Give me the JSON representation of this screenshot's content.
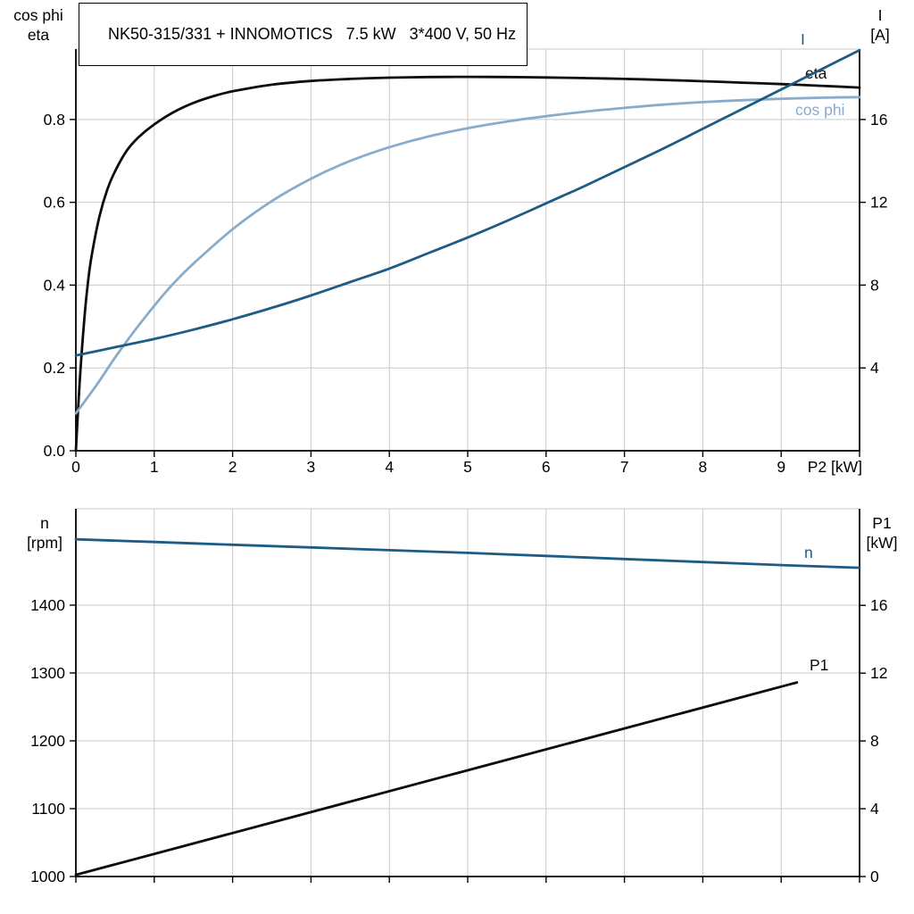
{
  "title": "NK50-315/331 + INNOMOTICS   7.5 kW   3*400 V, 50 Hz",
  "colors": {
    "curve_black": "#0d0d0d",
    "curve_dark_blue": "#1c5c85",
    "curve_light_blue": "#8aaccb",
    "grid": "#c9c9c9",
    "axis": "#000000",
    "text": "#000000"
  },
  "chart_data": [
    {
      "type": "line",
      "title": "NK50-315/331 + INNOMOTICS 7.5 kW 3*400 V, 50 Hz",
      "x_axis": {
        "label": "P2 [kW]",
        "min": 0,
        "max": 10,
        "ticks": [
          0,
          1,
          2,
          3,
          4,
          5,
          6,
          7,
          8,
          9,
          10
        ],
        "tick_labels": [
          "0",
          "1",
          "2",
          "3",
          "4",
          "5",
          "6",
          "7",
          "8",
          "9",
          ""
        ],
        "grid": true
      },
      "y_left": {
        "label_lines": [
          "cos phi",
          "eta"
        ],
        "min": 0,
        "max": 0.97,
        "ticks": [
          0,
          0.2,
          0.4,
          0.6,
          0.8
        ],
        "tick_labels": [
          "0.0",
          "0.2",
          "0.4",
          "0.6",
          "0.8"
        ],
        "grid": true
      },
      "y_right": {
        "label_lines": [
          "I",
          "[A]"
        ],
        "min": 0,
        "max": 19.4,
        "ticks": [
          4,
          8,
          12,
          16
        ],
        "tick_labels": [
          "4",
          "8",
          "12",
          "16"
        ]
      },
      "series": [
        {
          "name": "eta",
          "axis": "left",
          "color_key": "curve_black",
          "label_pos": [
            902,
            88
          ],
          "x": [
            0,
            0.05,
            0.1,
            0.15,
            0.2,
            0.3,
            0.4,
            0.5,
            0.65,
            0.8,
            1,
            1.25,
            1.5,
            1.75,
            2,
            2.5,
            3,
            3.5,
            4,
            4.5,
            5,
            5.5,
            6,
            6.5,
            7,
            7.5,
            8,
            8.5,
            9,
            9.5,
            10
          ],
          "y": [
            0,
            0.17,
            0.3,
            0.4,
            0.47,
            0.565,
            0.63,
            0.675,
            0.725,
            0.757,
            0.788,
            0.818,
            0.84,
            0.856,
            0.868,
            0.884,
            0.893,
            0.898,
            0.901,
            0.9025,
            0.903,
            0.9025,
            0.9015,
            0.9,
            0.898,
            0.8955,
            0.8925,
            0.889,
            0.8855,
            0.8815,
            0.877
          ]
        },
        {
          "name": "cos phi",
          "axis": "left",
          "color_key": "curve_light_blue",
          "label_pos": [
            891,
            129
          ],
          "x": [
            0,
            0.25,
            0.5,
            0.75,
            1,
            1.25,
            1.5,
            2,
            2.5,
            3,
            3.5,
            4,
            4.5,
            5,
            5.5,
            6,
            6.5,
            7,
            7.5,
            8,
            8.5,
            9,
            9.5,
            10
          ],
          "y": [
            0.09,
            0.155,
            0.225,
            0.29,
            0.35,
            0.405,
            0.452,
            0.535,
            0.603,
            0.657,
            0.7,
            0.733,
            0.759,
            0.779,
            0.795,
            0.808,
            0.819,
            0.828,
            0.836,
            0.842,
            0.8465,
            0.85,
            0.8525,
            0.854
          ]
        },
        {
          "name": "I",
          "axis": "right",
          "color_key": "curve_dark_blue",
          "label_pos": [
            897,
            50
          ],
          "x": [
            0,
            0.5,
            1,
            1.5,
            2,
            2.5,
            3,
            3.5,
            4,
            4.5,
            5,
            5.5,
            6,
            6.5,
            7,
            7.5,
            8,
            8.5,
            9,
            9.5,
            10
          ],
          "y": [
            4.6,
            5.0,
            5.4,
            5.85,
            6.35,
            6.9,
            7.5,
            8.15,
            8.8,
            9.55,
            10.3,
            11.1,
            11.95,
            12.8,
            13.7,
            14.6,
            15.55,
            16.5,
            17.45,
            18.4,
            19.35
          ]
        }
      ]
    },
    {
      "type": "line",
      "title": "",
      "x_axis": {
        "label": "",
        "min": 0,
        "max": 10,
        "ticks": [
          0,
          1,
          2,
          3,
          4,
          5,
          6,
          7,
          8,
          9,
          10
        ],
        "tick_labels": [
          "",
          "",
          "",
          "",
          "",
          "",
          "",
          "",
          "",
          "",
          ""
        ],
        "grid": true
      },
      "y_left": {
        "label_lines": [
          "n",
          "[rpm]"
        ],
        "min": 1000,
        "max": 1542,
        "ticks": [
          1000,
          1100,
          1200,
          1300,
          1400
        ],
        "tick_labels": [
          "1000",
          "1100",
          "1200",
          "1300",
          "1400"
        ],
        "grid": true
      },
      "y_right": {
        "label_lines": [
          "P1",
          "[kW]"
        ],
        "min": 0,
        "max": 21.7,
        "ticks": [
          0,
          4,
          8,
          12,
          16
        ],
        "tick_labels": [
          "0",
          "4",
          "8",
          "12",
          "16"
        ]
      },
      "series": [
        {
          "name": "n",
          "axis": "left",
          "color_key": "curve_dark_blue",
          "label_pos": [
            901,
            625
          ],
          "x": [
            0,
            1,
            2,
            3,
            4,
            5,
            6,
            7,
            8,
            9,
            10
          ],
          "y": [
            1497,
            1493,
            1489,
            1485,
            1481,
            1477,
            1472.5,
            1468,
            1463.5,
            1459,
            1455
          ]
        },
        {
          "name": "P1",
          "axis": "right",
          "color_key": "curve_black",
          "label_pos": [
            907,
            751
          ],
          "x": [
            0,
            9.2
          ],
          "y": [
            0.1,
            11.45
          ]
        }
      ]
    }
  ]
}
